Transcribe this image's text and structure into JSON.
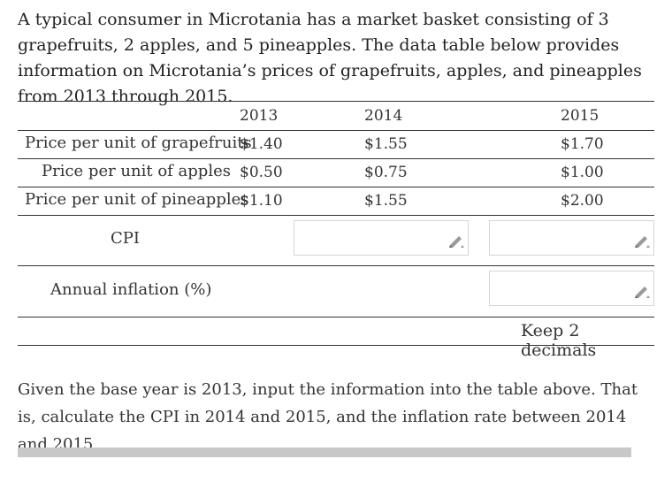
{
  "intro_text": "A typical consumer in Microtania has a market basket consisting of 3 grapefruits, 2 apples, and 5 pineapples. The data table below provides information on Microtania’s prices of grapefruits, apples, and pineapples from 2013 through 2015.",
  "table": {
    "years": [
      "2013",
      "2014",
      "2015"
    ],
    "rows": [
      {
        "label": "Price per unit of grapefruits",
        "values": [
          "$1.40",
          "$1.55",
          "$1.70"
        ]
      },
      {
        "label": "Price per unit of apples",
        "values": [
          "$0.50",
          "$0.75",
          "$1.00"
        ]
      },
      {
        "label": "Price per unit of pineapples",
        "values": [
          "$1.10",
          "$1.55",
          "$2.00"
        ]
      }
    ],
    "cpi_label": "CPI",
    "inflation_label": "Annual inflation (%)",
    "decimals_note": "Keep 2 decimals",
    "inputs": {
      "cpi_2014": "",
      "cpi_2015": "",
      "inflation_2015": ""
    }
  },
  "question_text": "Given the base year is 2013, input the information into the table above. That is, calculate the CPI in 2014 and 2015, and the inflation rate between 2014 and 2015.",
  "icon_color": "#9a9a9a"
}
